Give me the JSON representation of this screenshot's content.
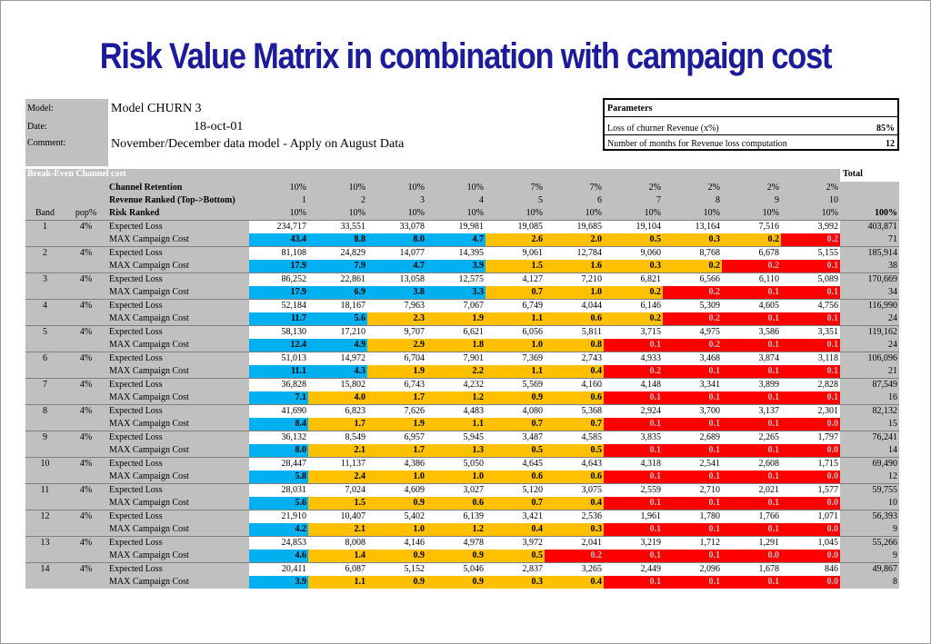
{
  "title": "Risk Value Matrix in combination with campaign cost",
  "meta": {
    "model_label": "Model:",
    "model_value": "Model CHURN 3",
    "date_label": "Date:",
    "date_value": "18-oct-01",
    "comment_label": "Comment:",
    "comment_value": "November/December data model - Apply on August Data"
  },
  "parameters": {
    "header": "Parameters",
    "rows": [
      {
        "label": "Loss of churner Revenue  (x%)",
        "value": "85%"
      },
      {
        "label": "Number of months for Revenue loss computation",
        "value": "12"
      }
    ]
  },
  "matrix": {
    "bar_label": "Break-Even Channel cost",
    "total_label": "Total",
    "channel_retention_label": "Channel Retention",
    "channel_retention": [
      "10%",
      "10%",
      "10%",
      "10%",
      "7%",
      "7%",
      "2%",
      "2%",
      "2%",
      "2%"
    ],
    "revenue_ranked_label": "Revenue Ranked (Top->Bottom)",
    "revenue_ranked": [
      "1",
      "2",
      "3",
      "4",
      "5",
      "6",
      "7",
      "8",
      "9",
      "10"
    ],
    "band_label": "Band",
    "pop_label": "pop%",
    "risk_ranked_label": "Risk Ranked",
    "risk_ranked": [
      "10%",
      "10%",
      "10%",
      "10%",
      "10%",
      "10%",
      "10%",
      "10%",
      "10%",
      "10%"
    ],
    "risk_total": "100%",
    "expected_loss_label": "Expected Loss",
    "max_cost_label": "MAX Campaign Cost",
    "colors": {
      "cyan": "#00b0f0",
      "yellow": "#ffc000",
      "red": "#ff0000",
      "grey": "#c0c0c0"
    },
    "bands": [
      {
        "band": "1",
        "pop": "4%",
        "loss": [
          "234,717",
          "33,551",
          "33,078",
          "19,981",
          "19,085",
          "19,685",
          "19,104",
          "13,164",
          "7,516",
          "3,992"
        ],
        "loss_total": "403,871",
        "cost": [
          "43.4",
          "8.8",
          "8.0",
          "4.7",
          "2.6",
          "2.0",
          "0.5",
          "0.3",
          "0.2",
          "0.2"
        ],
        "cost_color": [
          "cyan",
          "cyan",
          "cyan",
          "cyan",
          "yellow",
          "yellow",
          "yellow",
          "yellow",
          "yellow",
          "red"
        ],
        "cost_total": "71"
      },
      {
        "band": "2",
        "pop": "4%",
        "loss": [
          "81,108",
          "24,829",
          "14,077",
          "14,395",
          "9,061",
          "12,784",
          "9,060",
          "8,768",
          "6,678",
          "5,155"
        ],
        "loss_total": "185,914",
        "cost": [
          "17.9",
          "7.9",
          "4.7",
          "3.9",
          "1.5",
          "1.6",
          "0.3",
          "0.2",
          "0.2",
          "0.1"
        ],
        "cost_color": [
          "cyan",
          "cyan",
          "cyan",
          "cyan",
          "yellow",
          "yellow",
          "yellow",
          "yellow",
          "red",
          "red"
        ],
        "cost_total": "38"
      },
      {
        "band": "3",
        "pop": "4%",
        "loss": [
          "86,252",
          "22,861",
          "13,058",
          "12,575",
          "4,127",
          "7,210",
          "6,821",
          "6,566",
          "6,110",
          "5,089"
        ],
        "loss_total": "170,669",
        "cost": [
          "17.9",
          "6.9",
          "3.8",
          "3.3",
          "0.7",
          "1.0",
          "0.2",
          "0.2",
          "0.1",
          "0.1"
        ],
        "cost_color": [
          "cyan",
          "cyan",
          "cyan",
          "cyan",
          "yellow",
          "yellow",
          "yellow",
          "red",
          "red",
          "red"
        ],
        "cost_total": "34"
      },
      {
        "band": "4",
        "pop": "4%",
        "loss": [
          "52,184",
          "18,167",
          "7,963",
          "7,067",
          "6,749",
          "4,044",
          "6,146",
          "5,309",
          "4,605",
          "4,756"
        ],
        "loss_total": "116,990",
        "cost": [
          "11.7",
          "5.6",
          "2.3",
          "1.9",
          "1.1",
          "0.6",
          "0.2",
          "0.2",
          "0.1",
          "0.1"
        ],
        "cost_color": [
          "cyan",
          "cyan",
          "yellow",
          "yellow",
          "yellow",
          "yellow",
          "yellow",
          "red",
          "red",
          "red"
        ],
        "cost_total": "24"
      },
      {
        "band": "5",
        "pop": "4%",
        "loss": [
          "58,130",
          "17,210",
          "9,707",
          "6,621",
          "6,056",
          "5,811",
          "3,715",
          "4,975",
          "3,586",
          "3,351"
        ],
        "loss_total": "119,162",
        "cost": [
          "12.4",
          "4.9",
          "2.9",
          "1.8",
          "1.0",
          "0.8",
          "0.1",
          "0.2",
          "0.1",
          "0.1"
        ],
        "cost_color": [
          "cyan",
          "cyan",
          "yellow",
          "yellow",
          "yellow",
          "yellow",
          "red",
          "red",
          "red",
          "red"
        ],
        "cost_total": "24"
      },
      {
        "band": "6",
        "pop": "4%",
        "loss": [
          "51,013",
          "14,972",
          "6,704",
          "7,901",
          "7,369",
          "2,743",
          "4,933",
          "3,468",
          "3,874",
          "3,118"
        ],
        "loss_total": "106,096",
        "cost": [
          "11.1",
          "4.3",
          "1.9",
          "2.2",
          "1.1",
          "0.4",
          "0.2",
          "0.1",
          "0.1",
          "0.1"
        ],
        "cost_color": [
          "cyan",
          "cyan",
          "yellow",
          "yellow",
          "yellow",
          "yellow",
          "red",
          "red",
          "red",
          "red"
        ],
        "cost_total": "21"
      },
      {
        "band": "7",
        "pop": "4%",
        "loss": [
          "36,828",
          "15,802",
          "6,743",
          "4,232",
          "5,569",
          "4,160",
          "4,148",
          "3,341",
          "3,899",
          "2,828"
        ],
        "loss_total": "87,549",
        "cost": [
          "7.1",
          "4.0",
          "1.7",
          "1.2",
          "0.9",
          "0.6",
          "0.1",
          "0.1",
          "0.1",
          "0.1"
        ],
        "cost_color": [
          "cyan",
          "yellow",
          "yellow",
          "yellow",
          "yellow",
          "yellow",
          "red",
          "red",
          "red",
          "red"
        ],
        "cost_total": "16"
      },
      {
        "band": "8",
        "pop": "4%",
        "loss": [
          "41,690",
          "6,823",
          "7,626",
          "4,483",
          "4,080",
          "5,368",
          "2,924",
          "3,700",
          "3,137",
          "2,301"
        ],
        "loss_total": "82,132",
        "cost": [
          "8.4",
          "1.7",
          "1.9",
          "1.1",
          "0.7",
          "0.7",
          "0.1",
          "0.1",
          "0.1",
          "0.0"
        ],
        "cost_color": [
          "cyan",
          "yellow",
          "yellow",
          "yellow",
          "yellow",
          "yellow",
          "red",
          "red",
          "red",
          "red"
        ],
        "cost_total": "15"
      },
      {
        "band": "9",
        "pop": "4%",
        "loss": [
          "36,132",
          "8,549",
          "6,957",
          "5,945",
          "3,487",
          "4,585",
          "3,835",
          "2,689",
          "2,265",
          "1,797"
        ],
        "loss_total": "76,241",
        "cost": [
          "8.0",
          "2.1",
          "1.7",
          "1.3",
          "0.5",
          "0.5",
          "0.1",
          "0.1",
          "0.1",
          "0.0"
        ],
        "cost_color": [
          "cyan",
          "yellow",
          "yellow",
          "yellow",
          "yellow",
          "yellow",
          "red",
          "red",
          "red",
          "red"
        ],
        "cost_total": "14"
      },
      {
        "band": "10",
        "pop": "4%",
        "loss": [
          "28,447",
          "11,137",
          "4,386",
          "5,050",
          "4,645",
          "4,643",
          "4,318",
          "2,541",
          "2,608",
          "1,715"
        ],
        "loss_total": "69,490",
        "cost": [
          "5.8",
          "2.4",
          "1.0",
          "1.0",
          "0.6",
          "0.6",
          "0.1",
          "0.1",
          "0.1",
          "0.0"
        ],
        "cost_color": [
          "cyan",
          "yellow",
          "yellow",
          "yellow",
          "yellow",
          "yellow",
          "red",
          "red",
          "red",
          "red"
        ],
        "cost_total": "12"
      },
      {
        "band": "11",
        "pop": "4%",
        "loss": [
          "28,031",
          "7,024",
          "4,609",
          "3,027",
          "5,120",
          "3,075",
          "2,559",
          "2,710",
          "2,021",
          "1,577"
        ],
        "loss_total": "59,755",
        "cost": [
          "5.6",
          "1.5",
          "0.9",
          "0.6",
          "0.7",
          "0.4",
          "0.1",
          "0.1",
          "0.1",
          "0.0"
        ],
        "cost_color": [
          "cyan",
          "yellow",
          "yellow",
          "yellow",
          "yellow",
          "yellow",
          "red",
          "red",
          "red",
          "red"
        ],
        "cost_total": "10"
      },
      {
        "band": "12",
        "pop": "4%",
        "loss": [
          "21,910",
          "10,407",
          "5,402",
          "6,139",
          "3,421",
          "2,536",
          "1,961",
          "1,780",
          "1,766",
          "1,071"
        ],
        "loss_total": "56,393",
        "cost": [
          "4.2",
          "2.1",
          "1.0",
          "1.2",
          "0.4",
          "0.3",
          "0.1",
          "0.1",
          "0.1",
          "0.0"
        ],
        "cost_color": [
          "cyan",
          "yellow",
          "yellow",
          "yellow",
          "yellow",
          "yellow",
          "red",
          "red",
          "red",
          "red"
        ],
        "cost_total": "9"
      },
      {
        "band": "13",
        "pop": "4%",
        "loss": [
          "24,853",
          "8,008",
          "4,146",
          "4,978",
          "3,972",
          "2,041",
          "3,219",
          "1,712",
          "1,291",
          "1,045"
        ],
        "loss_total": "55,266",
        "cost": [
          "4.6",
          "1.4",
          "0.9",
          "0.9",
          "0.5",
          "0.2",
          "0.1",
          "0.1",
          "0.0",
          "0.0"
        ],
        "cost_color": [
          "cyan",
          "yellow",
          "yellow",
          "yellow",
          "yellow",
          "red",
          "red",
          "red",
          "red",
          "red"
        ],
        "cost_total": "9"
      },
      {
        "band": "14",
        "pop": "4%",
        "loss": [
          "20,411",
          "6,087",
          "5,152",
          "5,046",
          "2,837",
          "3,265",
          "2,449",
          "2,096",
          "1,678",
          "846"
        ],
        "loss_total": "49,867",
        "cost": [
          "3.9",
          "1.1",
          "0.9",
          "0.9",
          "0.3",
          "0.4",
          "0.1",
          "0.1",
          "0.1",
          "0.0"
        ],
        "cost_color": [
          "cyan",
          "yellow",
          "yellow",
          "yellow",
          "yellow",
          "yellow",
          "red",
          "red",
          "red",
          "red"
        ],
        "cost_total": "8"
      }
    ]
  }
}
